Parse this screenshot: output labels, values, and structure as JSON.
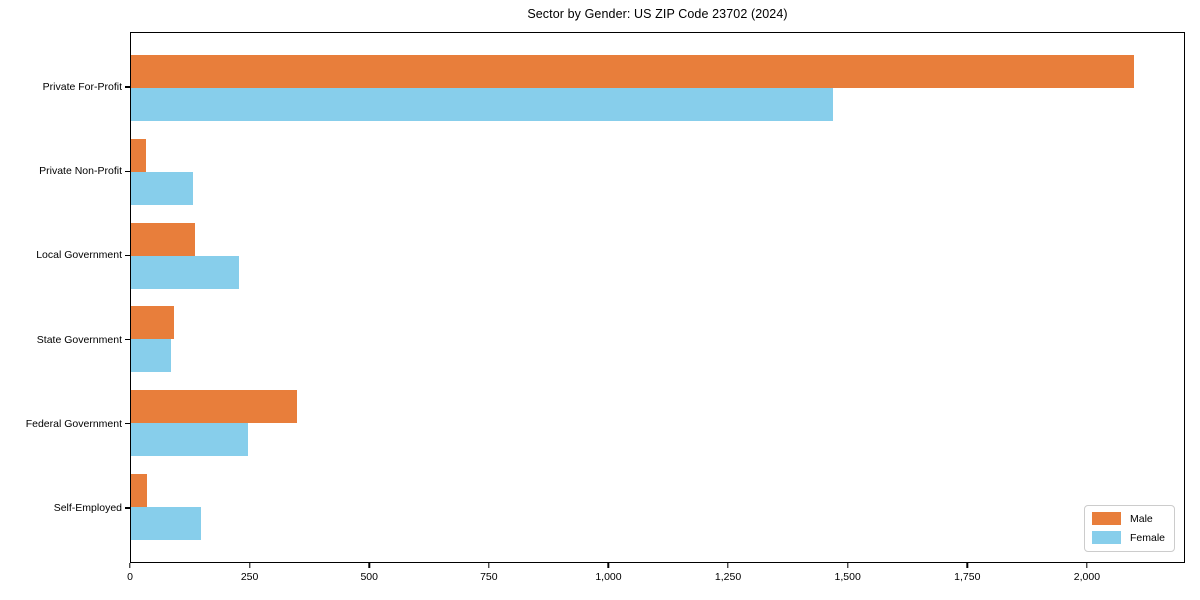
{
  "chart_data": {
    "type": "bar",
    "orientation": "horizontal",
    "title": "Sector by Gender: US ZIP Code 23702 (2024)",
    "categories": [
      "Private For-Profit",
      "Private Non-Profit",
      "Local Government",
      "State Government",
      "Federal Government",
      "Self-Employed"
    ],
    "series": [
      {
        "name": "Male",
        "color": "#e87e3b",
        "values": [
          2100,
          32,
          134,
          90,
          348,
          33
        ]
      },
      {
        "name": "Female",
        "color": "#87ceeb",
        "values": [
          1470,
          130,
          227,
          83,
          246,
          146
        ]
      }
    ],
    "xlim": [
      0,
      2205
    ],
    "xtick_values": [
      0,
      250,
      500,
      750,
      1000,
      1250,
      1500,
      1750,
      2000
    ],
    "xtick_labels": [
      "0",
      "250",
      "500",
      "750",
      "1,000",
      "1,250",
      "1,500",
      "1,750",
      "2,000"
    ],
    "grid": false,
    "frame": "full-box",
    "legend": {
      "position": "lower-right",
      "entries": [
        "Male",
        "Female"
      ]
    }
  }
}
